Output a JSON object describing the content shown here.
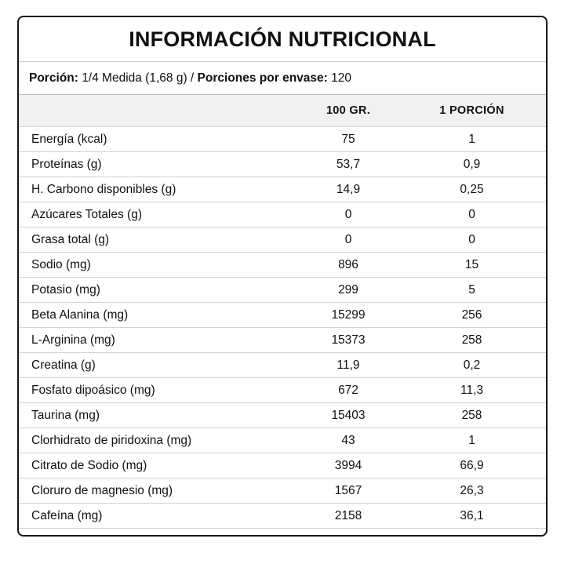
{
  "title": "INFORMACIÓN NUTRICIONAL",
  "portion": {
    "label_portion": "Porción:",
    "value_portion": "1/4 Medida (1,68 g)",
    "separator": "/",
    "label_servings": "Porciones por envase:",
    "value_servings": "120"
  },
  "columns": {
    "per_100": "100 GR.",
    "per_portion": "1 PORCIÓN"
  },
  "rows": [
    {
      "name": "Energía (kcal)",
      "per_100": "75",
      "per_portion": "1"
    },
    {
      "name": "Proteínas (g)",
      "per_100": "53,7",
      "per_portion": "0,9"
    },
    {
      "name": "H. Carbono disponibles (g)",
      "per_100": "14,9",
      "per_portion": "0,25"
    },
    {
      "name": "Azúcares Totales (g)",
      "per_100": "0",
      "per_portion": "0"
    },
    {
      "name": "Grasa total (g)",
      "per_100": "0",
      "per_portion": "0"
    },
    {
      "name": "Sodio (mg)",
      "per_100": "896",
      "per_portion": "15"
    },
    {
      "name": "Potasio (mg)",
      "per_100": "299",
      "per_portion": "5"
    },
    {
      "name": "Beta Alanina (mg)",
      "per_100": "15299",
      "per_portion": "256"
    },
    {
      "name": "L-Arginina (mg)",
      "per_100": "15373",
      "per_portion": "258"
    },
    {
      "name": "Creatina (g)",
      "per_100": "11,9",
      "per_portion": "0,2"
    },
    {
      "name": "Fosfato dipoásico (mg)",
      "per_100": "672",
      "per_portion": "11,3"
    },
    {
      "name": "Taurina (mg)",
      "per_100": "15403",
      "per_portion": "258"
    },
    {
      "name": "Clorhidrato de piridoxina (mg)",
      "per_100": "43",
      "per_portion": "1"
    },
    {
      "name": "Citrato de Sodio (mg)",
      "per_100": "3994",
      "per_portion": "66,9"
    },
    {
      "name": "Cloruro de magnesio (mg)",
      "per_100": "1567",
      "per_portion": "26,3"
    },
    {
      "name": "Cafeína (mg)",
      "per_100": "2158",
      "per_portion": "36,1"
    }
  ]
}
